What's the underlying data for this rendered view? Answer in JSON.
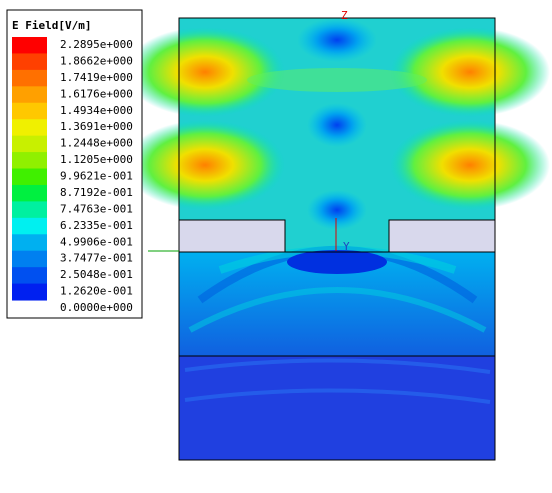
{
  "legend": {
    "title": "E Field[V/m]",
    "labels": [
      "2.2895e+000",
      "1.8662e+000",
      "1.7419e+000",
      "1.6176e+000",
      "1.4934e+000",
      "1.3691e+000",
      "1.2448e+000",
      "1.1205e+000",
      "9.9621e-001",
      "8.7192e-001",
      "7.4763e-001",
      "6.2335e-001",
      "4.9906e-001",
      "3.7477e-001",
      "2.5048e-001",
      "1.2620e-001",
      "0.0000e+000"
    ],
    "colors": [
      "#ff0000",
      "#ff4000",
      "#ff7000",
      "#ffa000",
      "#ffc800",
      "#f0f000",
      "#c8f000",
      "#90f000",
      "#40f000",
      "#00f040",
      "#00f0a0",
      "#00f0f0",
      "#00b0f0",
      "#0080f0",
      "#0050f0",
      "#0020f0"
    ]
  },
  "axes": {
    "z": "Z",
    "y": "Y"
  }
}
